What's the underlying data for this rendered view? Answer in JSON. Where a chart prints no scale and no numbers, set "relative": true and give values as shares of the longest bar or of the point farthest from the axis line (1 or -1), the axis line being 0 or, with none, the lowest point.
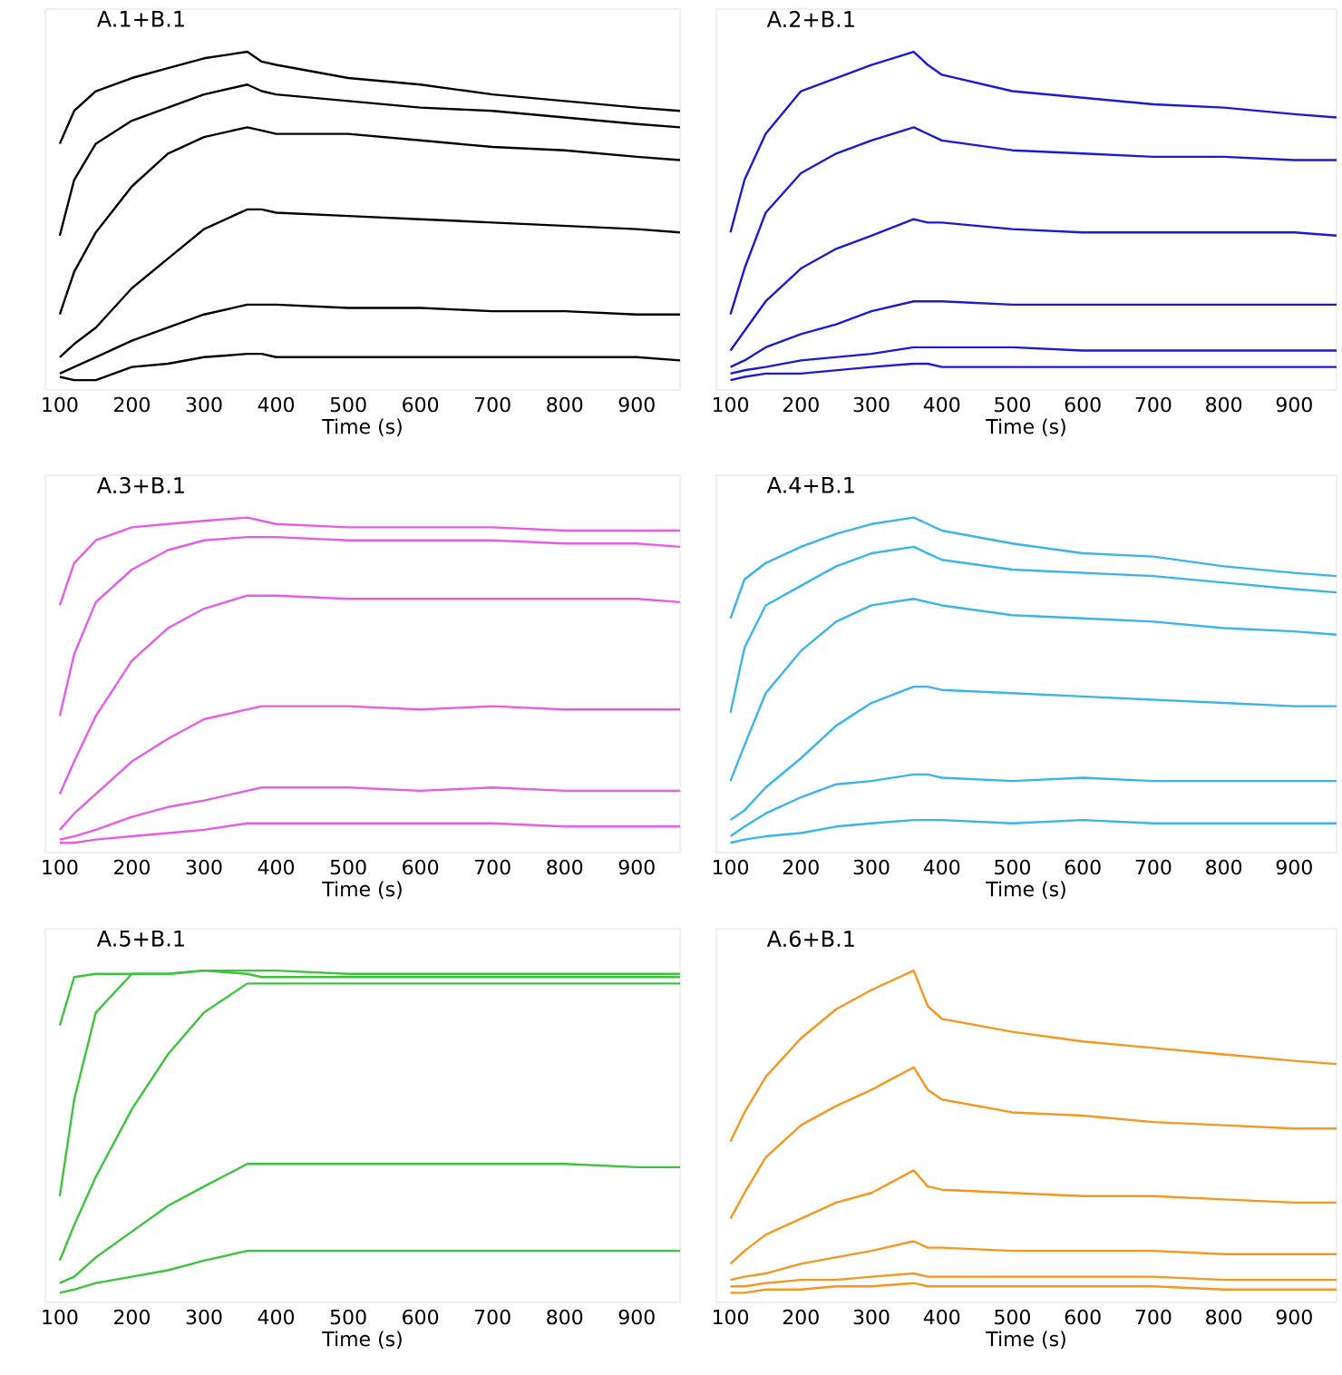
{
  "chart_data": [
    {
      "type": "line",
      "title": "A.1+B.1",
      "xlabel": "Time (s)",
      "relative": true,
      "xlim": [
        80,
        960
      ],
      "xticks": [
        100,
        200,
        300,
        400,
        500,
        600,
        700,
        800,
        900
      ],
      "x": [
        100,
        120,
        150,
        200,
        250,
        300,
        360,
        380,
        400,
        500,
        600,
        700,
        800,
        900,
        960
      ],
      "series": [
        {
          "color": "#000000",
          "values": [
            0.72,
            0.82,
            0.88,
            0.92,
            0.95,
            0.98,
            1.0,
            0.97,
            0.96,
            0.92,
            0.9,
            0.87,
            0.85,
            0.83,
            0.82
          ]
        },
        {
          "color": "#000000",
          "values": [
            0.44,
            0.61,
            0.72,
            0.79,
            0.83,
            0.87,
            0.9,
            0.88,
            0.87,
            0.85,
            0.83,
            0.82,
            0.8,
            0.78,
            0.77
          ]
        },
        {
          "color": "#000000",
          "values": [
            0.2,
            0.33,
            0.45,
            0.59,
            0.69,
            0.74,
            0.77,
            0.76,
            0.75,
            0.75,
            0.73,
            0.71,
            0.7,
            0.68,
            0.67
          ]
        },
        {
          "color": "#000000",
          "values": [
            0.07,
            0.11,
            0.16,
            0.28,
            0.37,
            0.46,
            0.52,
            0.52,
            0.51,
            0.5,
            0.49,
            0.48,
            0.47,
            0.46,
            0.45
          ]
        },
        {
          "color": "#000000",
          "values": [
            0.02,
            0.04,
            0.07,
            0.12,
            0.16,
            0.2,
            0.23,
            0.23,
            0.23,
            0.22,
            0.22,
            0.21,
            0.21,
            0.2,
            0.2
          ]
        },
        {
          "color": "#000000",
          "values": [
            0.01,
            0.0,
            0.0,
            0.04,
            0.05,
            0.07,
            0.08,
            0.08,
            0.07,
            0.07,
            0.07,
            0.07,
            0.07,
            0.07,
            0.06
          ]
        }
      ]
    },
    {
      "type": "line",
      "title": "A.2+B.1",
      "xlabel": "Time (s)",
      "relative": true,
      "xlim": [
        80,
        960
      ],
      "xticks": [
        100,
        200,
        300,
        400,
        500,
        600,
        700,
        800,
        900
      ],
      "x": [
        100,
        120,
        150,
        200,
        250,
        300,
        360,
        380,
        400,
        500,
        600,
        700,
        800,
        900,
        960
      ],
      "series": [
        {
          "color": "#1a1ad6",
          "values": [
            0.45,
            0.61,
            0.75,
            0.88,
            0.92,
            0.96,
            1.0,
            0.96,
            0.93,
            0.88,
            0.86,
            0.84,
            0.83,
            0.81,
            0.8
          ]
        },
        {
          "color": "#1a1ad6",
          "values": [
            0.2,
            0.34,
            0.51,
            0.63,
            0.69,
            0.73,
            0.77,
            0.75,
            0.73,
            0.7,
            0.69,
            0.68,
            0.68,
            0.67,
            0.67
          ]
        },
        {
          "color": "#1a1ad6",
          "values": [
            0.09,
            0.15,
            0.24,
            0.34,
            0.4,
            0.44,
            0.49,
            0.48,
            0.48,
            0.46,
            0.45,
            0.45,
            0.45,
            0.45,
            0.44
          ]
        },
        {
          "color": "#1a1ad6",
          "values": [
            0.04,
            0.06,
            0.1,
            0.14,
            0.17,
            0.21,
            0.24,
            0.24,
            0.24,
            0.23,
            0.23,
            0.23,
            0.23,
            0.23,
            0.23
          ]
        },
        {
          "color": "#1a1ad6",
          "values": [
            0.02,
            0.03,
            0.04,
            0.06,
            0.07,
            0.08,
            0.1,
            0.1,
            0.1,
            0.1,
            0.09,
            0.09,
            0.09,
            0.09,
            0.09
          ]
        },
        {
          "color": "#1a1ad6",
          "values": [
            0.0,
            0.01,
            0.02,
            0.02,
            0.03,
            0.04,
            0.05,
            0.05,
            0.04,
            0.04,
            0.04,
            0.04,
            0.04,
            0.04,
            0.04
          ]
        }
      ]
    },
    {
      "type": "line",
      "title": "A.3+B.1",
      "xlabel": "Time (s)",
      "relative": true,
      "xlim": [
        80,
        960
      ],
      "xticks": [
        100,
        200,
        300,
        400,
        500,
        600,
        700,
        800,
        900
      ],
      "x": [
        100,
        120,
        150,
        200,
        250,
        300,
        360,
        380,
        400,
        500,
        600,
        700,
        800,
        900,
        960
      ],
      "series": [
        {
          "color": "#e65ce6",
          "values": [
            0.73,
            0.86,
            0.93,
            0.97,
            0.98,
            0.99,
            1.0,
            0.99,
            0.98,
            0.97,
            0.97,
            0.97,
            0.96,
            0.96,
            0.96
          ]
        },
        {
          "color": "#e65ce6",
          "values": [
            0.39,
            0.58,
            0.74,
            0.84,
            0.9,
            0.93,
            0.94,
            0.94,
            0.94,
            0.93,
            0.93,
            0.93,
            0.92,
            0.92,
            0.91
          ]
        },
        {
          "color": "#e65ce6",
          "values": [
            0.15,
            0.25,
            0.39,
            0.56,
            0.66,
            0.72,
            0.76,
            0.76,
            0.76,
            0.75,
            0.75,
            0.75,
            0.75,
            0.75,
            0.74
          ]
        },
        {
          "color": "#e65ce6",
          "values": [
            0.04,
            0.09,
            0.15,
            0.25,
            0.32,
            0.38,
            0.41,
            0.42,
            0.42,
            0.42,
            0.41,
            0.42,
            0.41,
            0.41,
            0.41
          ]
        },
        {
          "color": "#e65ce6",
          "values": [
            0.01,
            0.02,
            0.04,
            0.08,
            0.11,
            0.13,
            0.16,
            0.17,
            0.17,
            0.17,
            0.16,
            0.17,
            0.16,
            0.16,
            0.16
          ]
        },
        {
          "color": "#e65ce6",
          "values": [
            0.0,
            0.0,
            0.01,
            0.02,
            0.03,
            0.04,
            0.06,
            0.06,
            0.06,
            0.06,
            0.06,
            0.06,
            0.05,
            0.05,
            0.05
          ]
        }
      ]
    },
    {
      "type": "line",
      "title": "A.4+B.1",
      "xlabel": "Time (s)",
      "relative": true,
      "xlim": [
        80,
        960
      ],
      "xticks": [
        100,
        200,
        300,
        400,
        500,
        600,
        700,
        800,
        900
      ],
      "x": [
        100,
        120,
        150,
        200,
        250,
        300,
        360,
        380,
        400,
        500,
        600,
        700,
        800,
        900,
        960
      ],
      "series": [
        {
          "color": "#3ab4ea",
          "values": [
            0.69,
            0.81,
            0.86,
            0.91,
            0.95,
            0.98,
            1.0,
            0.98,
            0.96,
            0.92,
            0.89,
            0.88,
            0.85,
            0.83,
            0.82
          ]
        },
        {
          "color": "#3ab4ea",
          "values": [
            0.4,
            0.6,
            0.73,
            0.79,
            0.85,
            0.89,
            0.91,
            0.89,
            0.87,
            0.84,
            0.83,
            0.82,
            0.8,
            0.78,
            0.77
          ]
        },
        {
          "color": "#3ab4ea",
          "values": [
            0.19,
            0.3,
            0.46,
            0.59,
            0.68,
            0.73,
            0.75,
            0.74,
            0.73,
            0.7,
            0.69,
            0.68,
            0.66,
            0.65,
            0.64
          ]
        },
        {
          "color": "#3ab4ea",
          "values": [
            0.07,
            0.1,
            0.17,
            0.26,
            0.36,
            0.43,
            0.48,
            0.48,
            0.47,
            0.46,
            0.45,
            0.44,
            0.43,
            0.42,
            0.42
          ]
        },
        {
          "color": "#3ab4ea",
          "values": [
            0.02,
            0.05,
            0.09,
            0.14,
            0.18,
            0.19,
            0.21,
            0.21,
            0.2,
            0.19,
            0.2,
            0.19,
            0.19,
            0.19,
            0.19
          ]
        },
        {
          "color": "#3ab4ea",
          "values": [
            0.0,
            0.01,
            0.02,
            0.03,
            0.05,
            0.06,
            0.07,
            0.07,
            0.07,
            0.06,
            0.07,
            0.06,
            0.06,
            0.06,
            0.06
          ]
        }
      ]
    },
    {
      "type": "line",
      "title": "A.5+B.1",
      "xlabel": "Time (s)",
      "relative": true,
      "xlim": [
        80,
        960
      ],
      "xticks": [
        100,
        200,
        300,
        400,
        500,
        600,
        700,
        800,
        900
      ],
      "x": [
        100,
        120,
        150,
        200,
        250,
        300,
        360,
        380,
        400,
        500,
        600,
        700,
        800,
        900,
        960
      ],
      "series": [
        {
          "color": "#3cc43c",
          "values": [
            0.83,
            0.98,
            0.99,
            0.99,
            0.99,
            1.0,
            1.0,
            1.0,
            1.0,
            0.99,
            0.99,
            0.99,
            0.99,
            0.99,
            0.99
          ]
        },
        {
          "color": "#3cc43c",
          "values": [
            0.3,
            0.6,
            0.87,
            0.99,
            0.99,
            1.0,
            0.99,
            0.98,
            0.98,
            0.98,
            0.98,
            0.98,
            0.98,
            0.98,
            0.98
          ]
        },
        {
          "color": "#3cc43c",
          "values": [
            0.1,
            0.21,
            0.36,
            0.57,
            0.74,
            0.87,
            0.96,
            0.96,
            0.96,
            0.96,
            0.96,
            0.96,
            0.96,
            0.96,
            0.96
          ]
        },
        {
          "color": "#3cc43c",
          "values": [
            0.03,
            0.05,
            0.11,
            0.19,
            0.27,
            0.33,
            0.4,
            0.4,
            0.4,
            0.4,
            0.4,
            0.4,
            0.4,
            0.39,
            0.39
          ]
        },
        {
          "color": "#3cc43c",
          "values": [
            0.0,
            0.01,
            0.03,
            0.05,
            0.07,
            0.1,
            0.13,
            0.13,
            0.13,
            0.13,
            0.13,
            0.13,
            0.13,
            0.13,
            0.13
          ]
        }
      ]
    },
    {
      "type": "line",
      "title": "A.6+B.1",
      "xlabel": "Time (s)",
      "relative": true,
      "xlim": [
        80,
        960
      ],
      "xticks": [
        100,
        200,
        300,
        400,
        500,
        600,
        700,
        800,
        900
      ],
      "x": [
        100,
        120,
        150,
        200,
        250,
        300,
        360,
        380,
        400,
        500,
        600,
        700,
        800,
        900,
        960
      ],
      "series": [
        {
          "color": "#f5961e",
          "values": [
            0.47,
            0.56,
            0.67,
            0.79,
            0.88,
            0.94,
            1.0,
            0.89,
            0.85,
            0.81,
            0.78,
            0.76,
            0.74,
            0.72,
            0.71
          ]
        },
        {
          "color": "#f5961e",
          "values": [
            0.23,
            0.31,
            0.42,
            0.52,
            0.58,
            0.63,
            0.7,
            0.63,
            0.6,
            0.56,
            0.55,
            0.53,
            0.52,
            0.51,
            0.51
          ]
        },
        {
          "color": "#f5961e",
          "values": [
            0.09,
            0.13,
            0.18,
            0.23,
            0.28,
            0.31,
            0.38,
            0.33,
            0.32,
            0.31,
            0.3,
            0.3,
            0.29,
            0.28,
            0.28
          ]
        },
        {
          "color": "#f5961e",
          "values": [
            0.04,
            0.05,
            0.06,
            0.09,
            0.11,
            0.13,
            0.16,
            0.14,
            0.14,
            0.13,
            0.13,
            0.13,
            0.12,
            0.12,
            0.12
          ]
        },
        {
          "color": "#f5961e",
          "values": [
            0.02,
            0.02,
            0.03,
            0.04,
            0.04,
            0.05,
            0.06,
            0.05,
            0.05,
            0.05,
            0.05,
            0.05,
            0.04,
            0.04,
            0.04
          ]
        },
        {
          "color": "#f5961e",
          "values": [
            0.0,
            0.0,
            0.01,
            0.01,
            0.02,
            0.02,
            0.03,
            0.02,
            0.02,
            0.02,
            0.02,
            0.02,
            0.01,
            0.01,
            0.01
          ]
        }
      ]
    }
  ]
}
